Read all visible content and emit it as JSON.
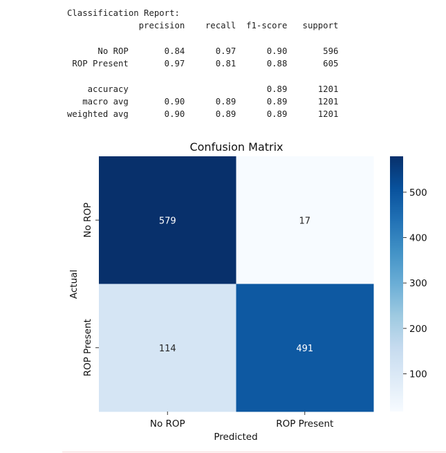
{
  "report": {
    "lines": [
      "Classification Report:",
      "              precision    recall  f1-score   support",
      "",
      "      No ROP       0.84      0.97      0.90       596",
      " ROP Present       0.97      0.81      0.88       605",
      "",
      "    accuracy                           0.89      1201",
      "   macro avg       0.90      0.89      0.89      1201",
      "weighted avg       0.90      0.89      0.89      1201"
    ]
  },
  "chart_data": {
    "type": "heatmap",
    "title": "Confusion Matrix",
    "xlabel": "Predicted",
    "ylabel": "Actual",
    "x_categories": [
      "No ROP",
      "ROP Present"
    ],
    "y_categories": [
      "No ROP",
      "ROP Present"
    ],
    "values": [
      [
        579,
        17
      ],
      [
        114,
        491
      ]
    ],
    "colormap": "Blues",
    "vmin": 17,
    "vmax": 579,
    "colorbar_ticks": [
      100,
      200,
      300,
      400,
      500
    ],
    "colorbar_labels": [
      "100",
      "200",
      "300",
      "400",
      "500"
    ]
  }
}
